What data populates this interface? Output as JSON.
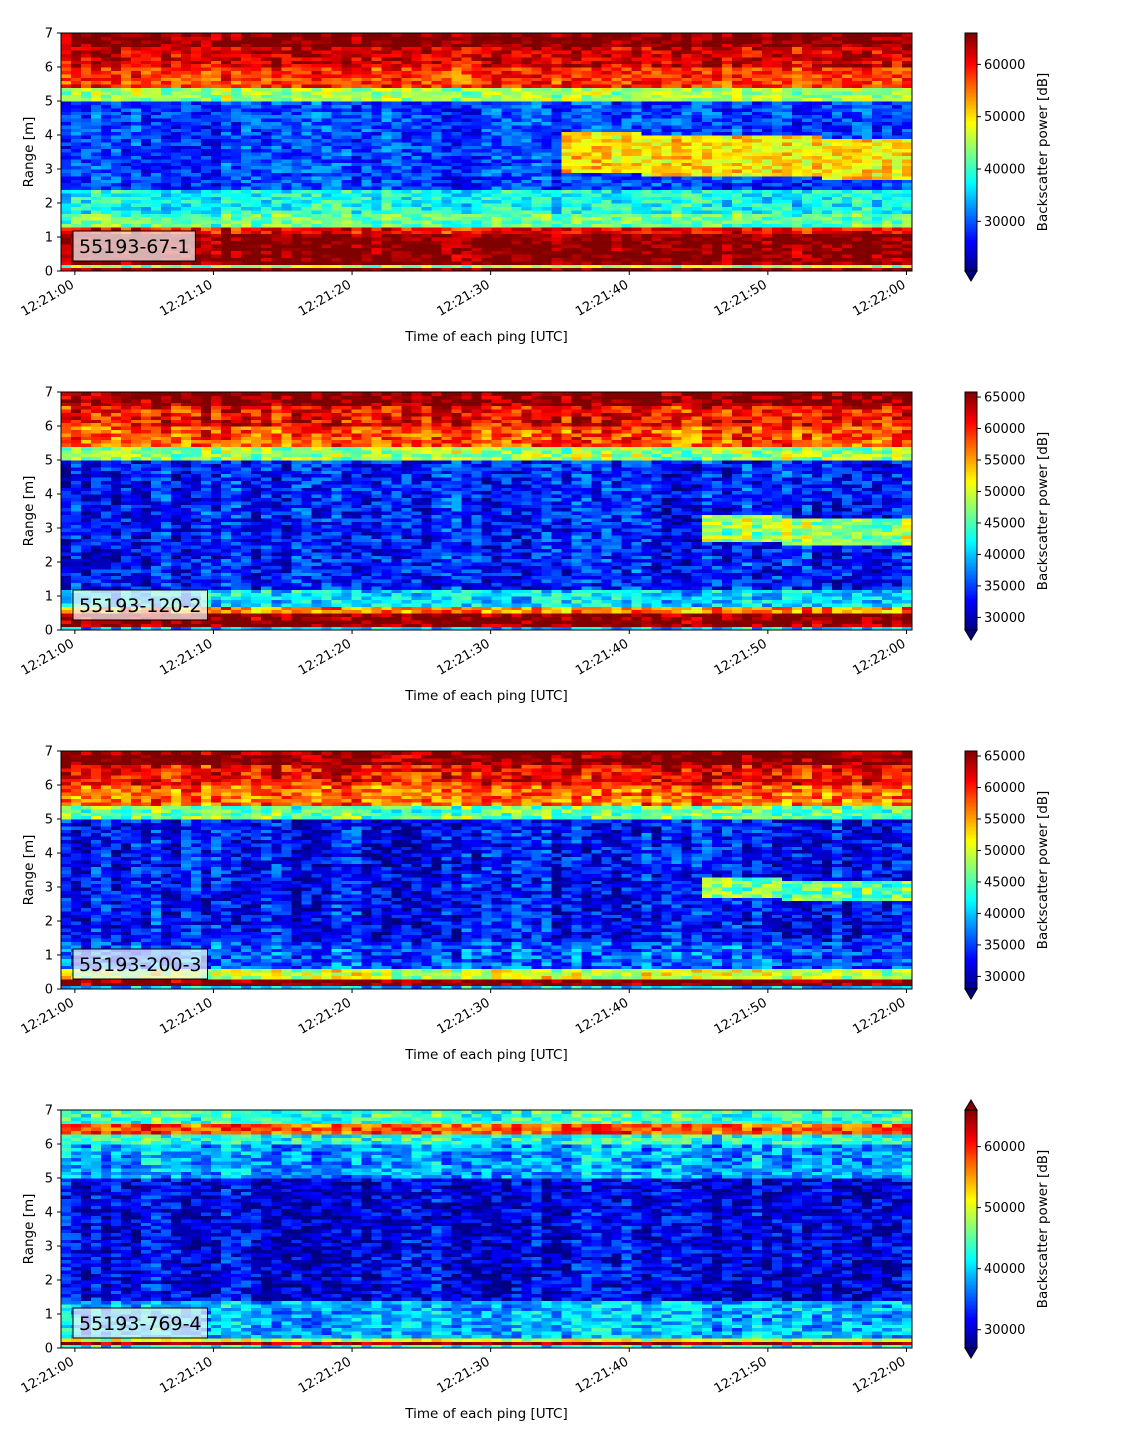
{
  "chart_data": [
    {
      "type": "heatmap",
      "label": "55193-67-1",
      "xlabel": "Time of each ping [UTC]",
      "ylabel": "Range [m]",
      "x_ticks": [
        "12:21:00",
        "12:21:10",
        "12:21:20",
        "12:21:30",
        "12:21:40",
        "12:21:50",
        "12:22:00"
      ],
      "y_ticks": [
        0,
        1,
        2,
        3,
        4,
        5,
        6,
        7
      ],
      "xlim": [
        "12:20:59",
        "12:22:00.4"
      ],
      "ylim": [
        0,
        7
      ],
      "colorbar": {
        "label": "Backscatter power [dB]",
        "ticks": [
          30000,
          40000,
          50000,
          60000
        ],
        "range": [
          20500,
          66000
        ],
        "extend": "min",
        "colormap": "jet"
      },
      "profile": {
        "bands": [
          {
            "range_m": [
              0.1,
              0.2
            ],
            "value": 44000
          },
          {
            "range_m": [
              0.2,
              1.1
            ],
            "value": 66000
          },
          {
            "range_m": [
              1.1,
              1.3
            ],
            "value": 60000
          },
          {
            "range_m": [
              1.3,
              1.7
            ],
            "value": 42000
          },
          {
            "range_m": [
              1.7,
              2.4
            ],
            "value": 38000
          },
          {
            "range_m": [
              2.4,
              5.0
            ],
            "value": 29000
          },
          {
            "range_m": [
              5.0,
              5.4
            ],
            "value": 45000
          },
          {
            "range_m": [
              5.4,
              6.0
            ],
            "value": 58000
          },
          {
            "range_m": [
              6.0,
              6.6
            ],
            "value": 62000
          },
          {
            "range_m": [
              6.6,
              7.0
            ],
            "value": 66000
          }
        ],
        "late_layer": {
          "start_s": 35,
          "range_m": [
            2.9,
            4.1
          ],
          "value": 50000
        }
      }
    },
    {
      "type": "heatmap",
      "label": "55193-120-2",
      "xlabel": "Time of each ping [UTC]",
      "ylabel": "Range [m]",
      "x_ticks": [
        "12:21:00",
        "12:21:10",
        "12:21:20",
        "12:21:30",
        "12:21:40",
        "12:21:50",
        "12:22:00"
      ],
      "y_ticks": [
        0,
        1,
        2,
        3,
        4,
        5,
        6,
        7
      ],
      "xlim": [
        "12:20:59",
        "12:22:00.4"
      ],
      "ylim": [
        0,
        7
      ],
      "colorbar": {
        "label": "Backscatter power [dB]",
        "ticks": [
          30000,
          35000,
          40000,
          45000,
          50000,
          55000,
          60000,
          65000
        ],
        "range": [
          28000,
          65800
        ],
        "extend": "min",
        "colormap": "jet"
      },
      "profile": {
        "bands": [
          {
            "range_m": [
              0.0,
              0.1
            ],
            "value": 40000
          },
          {
            "range_m": [
              0.1,
              0.5
            ],
            "value": 65800
          },
          {
            "range_m": [
              0.5,
              0.75
            ],
            "value": 56000
          },
          {
            "range_m": [
              0.75,
              1.2
            ],
            "value": 41000
          },
          {
            "range_m": [
              1.2,
              5.0
            ],
            "value": 33500
          },
          {
            "range_m": [
              5.0,
              5.4
            ],
            "value": 48000
          },
          {
            "range_m": [
              5.4,
              6.0
            ],
            "value": 58000
          },
          {
            "range_m": [
              6.0,
              6.6
            ],
            "value": 61000
          },
          {
            "range_m": [
              6.6,
              7.0
            ],
            "value": 65800
          }
        ],
        "late_layer": {
          "start_s": 45,
          "range_m": [
            2.6,
            3.4
          ],
          "value": 48000
        }
      }
    },
    {
      "type": "heatmap",
      "label": "55193-200-3",
      "xlabel": "Time of each ping [UTC]",
      "ylabel": "Range [m]",
      "x_ticks": [
        "12:21:00",
        "12:21:10",
        "12:21:20",
        "12:21:30",
        "12:21:40",
        "12:21:50",
        "12:22:00"
      ],
      "y_ticks": [
        0,
        1,
        2,
        3,
        4,
        5,
        6,
        7
      ],
      "xlim": [
        "12:20:59",
        "12:22:00.4"
      ],
      "ylim": [
        0,
        7
      ],
      "colorbar": {
        "label": "Backscatter power [dB]",
        "ticks": [
          30000,
          35000,
          40000,
          45000,
          50000,
          55000,
          60000,
          65000
        ],
        "range": [
          28000,
          65800
        ],
        "extend": "min",
        "colormap": "jet"
      },
      "profile": {
        "bands": [
          {
            "range_m": [
              0.0,
              0.1
            ],
            "value": 40000
          },
          {
            "range_m": [
              0.1,
              0.35
            ],
            "value": 65800
          },
          {
            "range_m": [
              0.35,
              0.6
            ],
            "value": 50000
          },
          {
            "range_m": [
              0.6,
              1.4
            ],
            "value": 36000
          },
          {
            "range_m": [
              1.4,
              5.0
            ],
            "value": 33000
          },
          {
            "range_m": [
              5.0,
              5.4
            ],
            "value": 46000
          },
          {
            "range_m": [
              5.4,
              6.0
            ],
            "value": 57000
          },
          {
            "range_m": [
              6.0,
              6.6
            ],
            "value": 61000
          },
          {
            "range_m": [
              6.6,
              7.0
            ],
            "value": 65800
          }
        ],
        "late_layer": {
          "start_s": 45,
          "range_m": [
            2.7,
            3.3
          ],
          "value": 46000
        }
      }
    },
    {
      "type": "heatmap",
      "label": "55193-769-4",
      "xlabel": "Time of each ping [UTC]",
      "ylabel": "Range [m]",
      "x_ticks": [
        "12:21:00",
        "12:21:10",
        "12:21:20",
        "12:21:30",
        "12:21:40",
        "12:21:50",
        "12:22:00"
      ],
      "y_ticks": [
        0,
        1,
        2,
        3,
        4,
        5,
        6,
        7
      ],
      "xlim": [
        "12:20:59",
        "12:22:00.4"
      ],
      "ylim": [
        0,
        7
      ],
      "colorbar": {
        "label": "Backscatter power [dB]",
        "ticks": [
          30000,
          40000,
          50000,
          60000
        ],
        "range": [
          27000,
          66000
        ],
        "extend": "both",
        "colormap": "jet"
      },
      "profile": {
        "bands": [
          {
            "range_m": [
              0.0,
              0.12
            ],
            "value": 42000
          },
          {
            "range_m": [
              0.12,
              0.22
            ],
            "value": 66000
          },
          {
            "range_m": [
              0.22,
              0.35
            ],
            "value": 50000
          },
          {
            "range_m": [
              0.35,
              1.4
            ],
            "value": 39000
          },
          {
            "range_m": [
              1.4,
              5.0
            ],
            "value": 31000
          },
          {
            "range_m": [
              5.0,
              6.0
            ],
            "value": 38000
          },
          {
            "range_m": [
              6.0,
              6.3
            ],
            "value": 43000
          },
          {
            "range_m": [
              6.3,
              6.6
            ],
            "value": 58000
          },
          {
            "range_m": [
              6.6,
              7.0
            ],
            "value": 44000
          }
        ],
        "late_layer": null
      }
    }
  ]
}
